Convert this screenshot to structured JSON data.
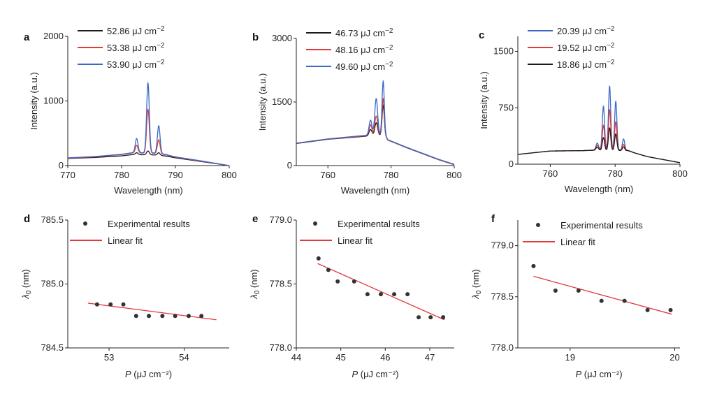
{
  "chart_data": [
    {
      "panel": "a",
      "type": "line",
      "xlabel": "Wavelength (nm)",
      "ylabel": "Intensity (a.u.)",
      "xlim": [
        770,
        800
      ],
      "ylim": [
        0,
        2000
      ],
      "xticks": [
        770,
        780,
        790,
        800
      ],
      "yticks": [
        0,
        1000,
        2000
      ],
      "legend_position": "top-left",
      "series": [
        {
          "name": "52.86 μJ cm⁻²",
          "color": "#1a1a1a",
          "base": [
            [
              770,
              110
            ],
            [
              775,
              125
            ],
            [
              780,
              150
            ],
            [
              782,
              170
            ],
            [
              786,
              165
            ],
            [
              788,
              150
            ],
            [
              790,
              120
            ],
            [
              795,
              60
            ],
            [
              800,
              0
            ]
          ],
          "peaks": [
            [
              782.8,
              30,
              0.25
            ],
            [
              784.9,
              60,
              0.25
            ],
            [
              786.9,
              40,
              0.25
            ]
          ]
        },
        {
          "name": "53.38 μJ cm⁻²",
          "color": "#e03a3e",
          "base": [
            [
              770,
              115
            ],
            [
              775,
              135
            ],
            [
              780,
              170
            ],
            [
              782,
              195
            ],
            [
              786,
              190
            ],
            [
              788,
              170
            ],
            [
              790,
              130
            ],
            [
              795,
              65
            ],
            [
              800,
              0
            ]
          ],
          "peaks": [
            [
              782.8,
              120,
              0.25
            ],
            [
              784.9,
              680,
              0.25
            ],
            [
              786.9,
              220,
              0.25
            ]
          ]
        },
        {
          "name": "53.90 μJ cm⁻²",
          "color": "#3a6ac6",
          "base": [
            [
              770,
              120
            ],
            [
              775,
              140
            ],
            [
              780,
              175
            ],
            [
              782,
              200
            ],
            [
              786,
              195
            ],
            [
              788,
              175
            ],
            [
              790,
              135
            ],
            [
              795,
              70
            ],
            [
              800,
              0
            ]
          ],
          "peaks": [
            [
              782.8,
              220,
              0.25
            ],
            [
              784.9,
              1080,
              0.25
            ],
            [
              786.9,
              430,
              0.25
            ]
          ]
        }
      ]
    },
    {
      "panel": "b",
      "type": "line",
      "xlabel": "Wavelength (nm)",
      "ylabel": "Intensity (a.u.)",
      "xlim": [
        750,
        800
      ],
      "ylim": [
        0,
        3000
      ],
      "xticks": [
        760,
        780,
        800
      ],
      "yticks": [
        0,
        1500,
        3000
      ],
      "legend_position": "top-left",
      "series": [
        {
          "name": "46.73 μJ cm⁻²",
          "color": "#1a1a1a",
          "base": [
            [
              750,
              520
            ],
            [
              760,
              620
            ],
            [
              770,
              680
            ],
            [
              773,
              700
            ],
            [
              778,
              720
            ],
            [
              779,
              600
            ],
            [
              785,
              420
            ],
            [
              790,
              280
            ],
            [
              795,
              140
            ],
            [
              800,
              20
            ]
          ],
          "peaks": [
            [
              773.5,
              150,
              0.45
            ],
            [
              775.3,
              300,
              0.45
            ],
            [
              777.5,
              700,
              0.35
            ]
          ]
        },
        {
          "name": "48.16 μJ cm⁻²",
          "color": "#e03a3e",
          "base": [
            [
              750,
              525
            ],
            [
              760,
              625
            ],
            [
              770,
              690
            ],
            [
              773,
              710
            ],
            [
              778,
              730
            ],
            [
              779,
              600
            ],
            [
              785,
              425
            ],
            [
              790,
              285
            ],
            [
              795,
              145
            ],
            [
              800,
              25
            ]
          ],
          "peaks": [
            [
              773.5,
              250,
              0.45
            ],
            [
              775.3,
              450,
              0.45
            ],
            [
              777.5,
              850,
              0.35
            ]
          ]
        },
        {
          "name": "49.60 μJ cm⁻²",
          "color": "#3a6ac6",
          "base": [
            [
              750,
              530
            ],
            [
              760,
              630
            ],
            [
              770,
              700
            ],
            [
              773,
              720
            ],
            [
              778,
              740
            ],
            [
              779,
              610
            ],
            [
              785,
              430
            ],
            [
              790,
              290
            ],
            [
              795,
              150
            ],
            [
              800,
              30
            ]
          ],
          "peaks": [
            [
              773.5,
              350,
              0.45
            ],
            [
              775.3,
              850,
              0.45
            ],
            [
              777.5,
              1250,
              0.35
            ]
          ]
        }
      ]
    },
    {
      "panel": "c",
      "type": "line",
      "xlabel": "Wavelength (nm)",
      "ylabel": "Intensity (a.u.)",
      "xlim": [
        750,
        800
      ],
      "ylim": [
        0,
        1700
      ],
      "xticks": [
        760,
        780,
        800
      ],
      "yticks": [
        0,
        750,
        1500
      ],
      "legend_position": "top-left",
      "series": [
        {
          "name": "20.39 μJ cm⁻²",
          "color": "#3a6ac6",
          "base": [
            [
              750,
              130
            ],
            [
              760,
              175
            ],
            [
              770,
              180
            ],
            [
              774,
              190
            ],
            [
              784,
              185
            ],
            [
              786,
              150
            ],
            [
              790,
              100
            ],
            [
              795,
              60
            ],
            [
              800,
              20
            ]
          ],
          "peaks": [
            [
              774.5,
              90,
              0.4
            ],
            [
              776.4,
              580,
              0.35
            ],
            [
              778.3,
              850,
              0.35
            ],
            [
              780.2,
              650,
              0.35
            ],
            [
              782.6,
              150,
              0.35
            ]
          ]
        },
        {
          "name": "19.52 μJ cm⁻²",
          "color": "#e03a3e",
          "base": [
            [
              750,
              130
            ],
            [
              760,
              175
            ],
            [
              770,
              180
            ],
            [
              774,
              188
            ],
            [
              784,
              183
            ],
            [
              786,
              150
            ],
            [
              790,
              100
            ],
            [
              795,
              60
            ],
            [
              800,
              20
            ]
          ],
          "peaks": [
            [
              774.5,
              60,
              0.4
            ],
            [
              776.4,
              330,
              0.35
            ],
            [
              778.3,
              540,
              0.35
            ],
            [
              780.2,
              380,
              0.35
            ],
            [
              782.6,
              80,
              0.35
            ]
          ]
        },
        {
          "name": "18.86 μJ cm⁻²",
          "color": "#1a1a1a",
          "base": [
            [
              750,
              130
            ],
            [
              760,
              175
            ],
            [
              770,
              180
            ],
            [
              774,
              185
            ],
            [
              784,
              180
            ],
            [
              786,
              150
            ],
            [
              790,
              100
            ],
            [
              795,
              60
            ],
            [
              800,
              20
            ]
          ],
          "peaks": [
            [
              774.5,
              40,
              0.4
            ],
            [
              776.4,
              170,
              0.35
            ],
            [
              778.3,
              300,
              0.35
            ],
            [
              780.2,
              220,
              0.35
            ],
            [
              782.6,
              50,
              0.35
            ]
          ]
        }
      ]
    },
    {
      "panel": "d",
      "type": "scatter",
      "xlabel": "P (μJ cm⁻²)",
      "ylabel": "λ0 (nm)",
      "xlim": [
        52.45,
        54.6
      ],
      "ylim": [
        784.5,
        785.5
      ],
      "xticks": [
        53,
        54
      ],
      "yticks": [
        784.5,
        785.0,
        785.5
      ],
      "legend_position": "top",
      "legend": [
        "Experimental results",
        "Linear fit"
      ],
      "points": {
        "x": [
          52.84,
          53.02,
          53.19,
          53.36,
          53.53,
          53.71,
          53.88,
          54.06,
          54.23
        ],
        "y": [
          784.84,
          784.84,
          784.84,
          784.75,
          784.75,
          784.75,
          784.75,
          784.75,
          784.75
        ]
      },
      "fit": {
        "x": [
          52.72,
          54.43
        ],
        "y": [
          784.85,
          784.72
        ]
      }
    },
    {
      "panel": "e",
      "type": "scatter",
      "xlabel": "P (μJ cm⁻²)",
      "ylabel": "λ0 (nm)",
      "xlim": [
        44,
        47.55
      ],
      "ylim": [
        778.0,
        779.0
      ],
      "xticks": [
        44,
        45,
        46,
        47
      ],
      "yticks": [
        778.0,
        778.5,
        779.0
      ],
      "legend_position": "top",
      "legend": [
        "Experimental results",
        "Linear fit"
      ],
      "points": {
        "x": [
          44.5,
          44.72,
          44.93,
          45.3,
          45.6,
          45.9,
          46.2,
          46.5,
          46.75,
          47.02,
          47.3
        ],
        "y": [
          778.7,
          778.61,
          778.52,
          778.52,
          778.42,
          778.42,
          778.42,
          778.42,
          778.24,
          778.24,
          778.24
        ]
      },
      "fit": {
        "x": [
          44.48,
          47.33
        ],
        "y": [
          778.66,
          778.22
        ]
      }
    },
    {
      "panel": "f",
      "type": "scatter",
      "xlabel": "P (μJ cm⁻²)",
      "ylabel": "λ0 (nm)",
      "xlim": [
        18.5,
        20.05
      ],
      "ylim": [
        778.0,
        779.25
      ],
      "xticks": [
        19,
        20
      ],
      "yticks": [
        778.0,
        778.5,
        779.0
      ],
      "legend_position": "top",
      "legend": [
        "Experimental results",
        "Linear fit"
      ],
      "points": {
        "x": [
          18.65,
          18.86,
          19.08,
          19.3,
          19.52,
          19.74,
          19.96
        ],
        "y": [
          778.8,
          778.56,
          778.56,
          778.46,
          778.46,
          778.37,
          778.37
        ]
      },
      "fit": {
        "x": [
          18.65,
          19.97
        ],
        "y": [
          778.7,
          778.33
        ]
      }
    }
  ]
}
